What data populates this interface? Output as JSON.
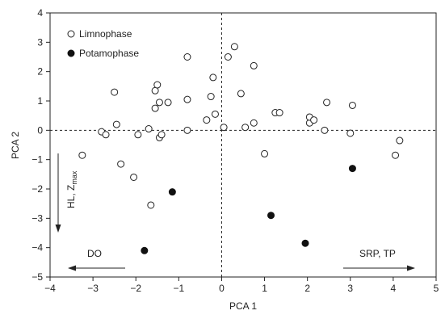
{
  "chart_data": {
    "type": "scatter",
    "xlabel": "PCA 1",
    "ylabel": "PCA 2",
    "xlim": [
      -4,
      5
    ],
    "ylim": [
      -5,
      4
    ],
    "xticks": [
      -4,
      -3,
      -2,
      -1,
      0,
      1,
      2,
      3,
      4,
      5
    ],
    "yticks": [
      -5,
      -4,
      -3,
      -2,
      -1,
      0,
      1,
      2,
      3,
      4
    ],
    "grid": false,
    "reference_lines": [
      "x=0 dashed",
      "y=0 dashed"
    ],
    "legend_position": "top-left",
    "series": [
      {
        "name": "Limnophase",
        "marker": "open-circle",
        "color": "#222222",
        "points": [
          [
            -3.25,
            -0.85
          ],
          [
            -2.8,
            -0.05
          ],
          [
            -2.7,
            -0.15
          ],
          [
            -2.5,
            1.3
          ],
          [
            -2.45,
            0.2
          ],
          [
            -2.35,
            -1.15
          ],
          [
            -2.05,
            -1.6
          ],
          [
            -1.95,
            -0.15
          ],
          [
            -1.7,
            0.05
          ],
          [
            -1.65,
            -2.55
          ],
          [
            -1.55,
            0.75
          ],
          [
            -1.55,
            1.35
          ],
          [
            -1.5,
            1.55
          ],
          [
            -1.45,
            0.95
          ],
          [
            -1.45,
            -0.25
          ],
          [
            -1.4,
            -0.15
          ],
          [
            -1.25,
            0.95
          ],
          [
            -0.8,
            2.5
          ],
          [
            -0.8,
            1.05
          ],
          [
            -0.8,
            0.0
          ],
          [
            -0.35,
            0.35
          ],
          [
            -0.25,
            1.15
          ],
          [
            -0.2,
            1.8
          ],
          [
            -0.15,
            0.55
          ],
          [
            0.05,
            0.1
          ],
          [
            0.15,
            2.5
          ],
          [
            0.3,
            2.85
          ],
          [
            0.45,
            1.25
          ],
          [
            0.55,
            0.1
          ],
          [
            0.75,
            2.2
          ],
          [
            0.75,
            0.25
          ],
          [
            1.0,
            -0.8
          ],
          [
            1.25,
            0.6
          ],
          [
            1.35,
            0.6
          ],
          [
            2.05,
            0.25
          ],
          [
            2.05,
            0.45
          ],
          [
            2.15,
            0.35
          ],
          [
            2.4,
            0.0
          ],
          [
            2.45,
            0.95
          ],
          [
            3.0,
            -0.1
          ],
          [
            3.05,
            0.85
          ],
          [
            4.05,
            -0.85
          ],
          [
            4.15,
            -0.35
          ]
        ]
      },
      {
        "name": "Potamophase",
        "marker": "filled-circle",
        "color": "#111111",
        "points": [
          [
            -1.8,
            -4.1
          ],
          [
            -1.15,
            -2.1
          ],
          [
            1.15,
            -2.9
          ],
          [
            1.95,
            -3.85
          ],
          [
            3.05,
            -1.3
          ]
        ]
      }
    ],
    "annotations": [
      {
        "text": "DO",
        "arrow": "left"
      },
      {
        "text": "SRP, TP",
        "arrow": "right"
      },
      {
        "text": "HL, Z",
        "subscript": "max",
        "arrow": "down"
      }
    ]
  }
}
